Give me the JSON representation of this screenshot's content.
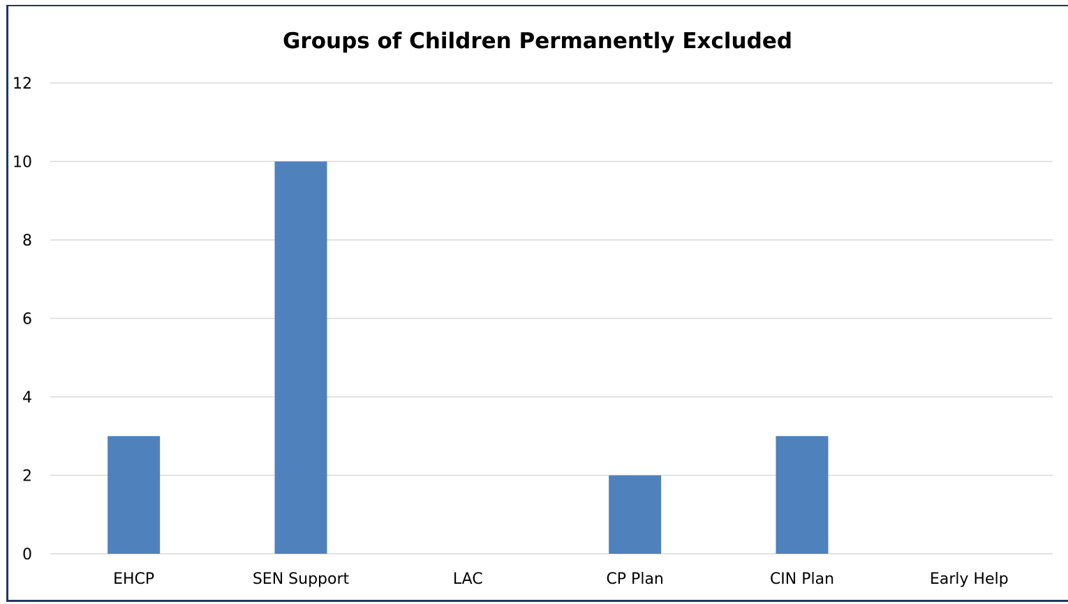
{
  "chart_data": {
    "type": "bar",
    "title": "Groups of Children Permanently Excluded",
    "xlabel": "",
    "ylabel": "",
    "categories": [
      "EHCP",
      "SEN Support",
      "LAC",
      "CP Plan",
      "CIN Plan",
      "Early Help"
    ],
    "values": [
      3,
      10,
      0,
      2,
      3,
      0
    ],
    "ylim": [
      0,
      12
    ],
    "yticks": [
      "0",
      "2",
      "4",
      "6",
      "8",
      "10",
      "12"
    ],
    "grid": true,
    "legend": "none",
    "bar_color": "#4f81bd",
    "grid_color": "#d9d9d9",
    "frame_color": "#1f3864"
  }
}
